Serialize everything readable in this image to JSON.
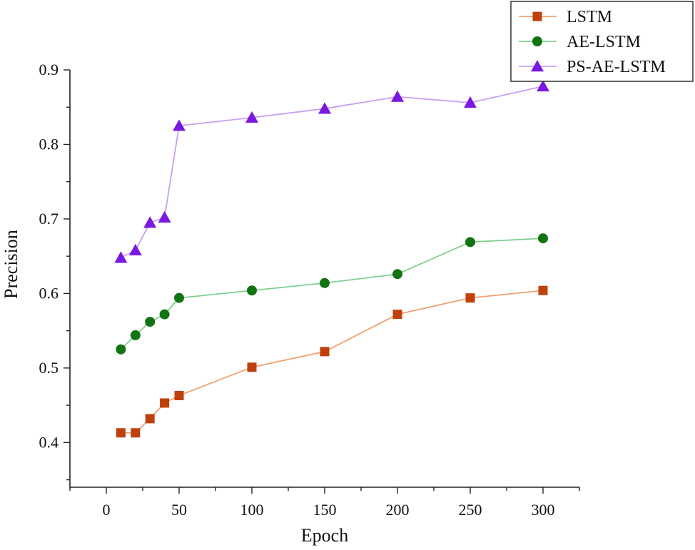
{
  "chart_data": {
    "type": "line",
    "title": "",
    "xlabel": "Epoch",
    "ylabel": "Precision",
    "xlim": [
      -25,
      325
    ],
    "ylim": [
      0.34,
      0.9
    ],
    "xticks": [
      0,
      50,
      100,
      150,
      200,
      250,
      300
    ],
    "xtick_labels": [
      "0",
      "50",
      "100",
      "150",
      "200",
      "250",
      "300"
    ],
    "yticks": [
      0.4,
      0.5,
      0.6,
      0.7,
      0.8,
      0.9
    ],
    "ytick_labels": [
      "0.4",
      "0.5",
      "0.6",
      "0.7",
      "0.8",
      "0.9"
    ],
    "grid": false,
    "legend_position": "top-right",
    "x": [
      10,
      20,
      30,
      40,
      50,
      100,
      150,
      200,
      250,
      300
    ],
    "series": [
      {
        "name": "LSTM",
        "marker": "square",
        "line_color": "#f0a070",
        "marker_color": "#c0400c",
        "values": [
          0.413,
          0.413,
          0.432,
          0.453,
          0.463,
          0.501,
          0.522,
          0.572,
          0.594,
          0.604
        ]
      },
      {
        "name": "AE-LSTM",
        "marker": "circle",
        "line_color": "#7fcf8f",
        "marker_color": "#127312",
        "values": [
          0.525,
          0.544,
          0.562,
          0.572,
          0.594,
          0.604,
          0.614,
          0.626,
          0.669,
          0.674
        ]
      },
      {
        "name": "PS-AE-LSTM",
        "marker": "triangle",
        "line_color": "#c7a0f0",
        "marker_color": "#7a18e0",
        "values": [
          0.648,
          0.658,
          0.695,
          0.702,
          0.825,
          0.836,
          0.848,
          0.864,
          0.856,
          0.878
        ]
      }
    ]
  }
}
